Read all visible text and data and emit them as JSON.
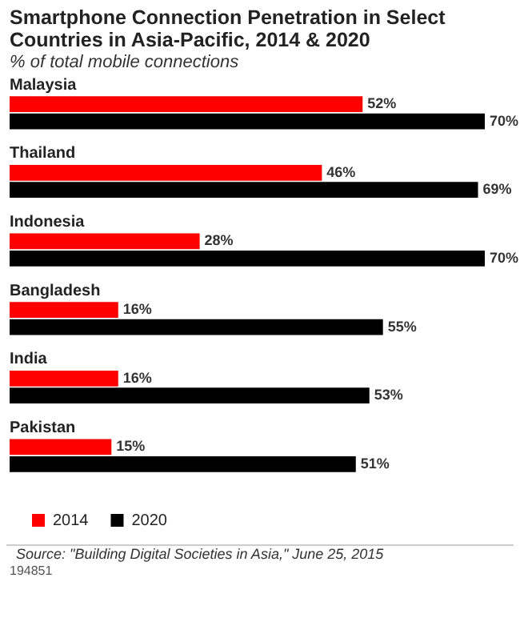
{
  "chart_data": {
    "type": "bar",
    "orientation": "horizontal",
    "title": "Smartphone Connection Penetration in Select Countries in Asia-Pacific, 2014 & 2020",
    "subtitle": "% of total mobile connections",
    "categories": [
      "Malaysia",
      "Thailand",
      "Indonesia",
      "Bangladesh",
      "India",
      "Pakistan"
    ],
    "series": [
      {
        "name": "2014",
        "color": "#ff0000",
        "values": [
          52,
          46,
          28,
          16,
          16,
          15
        ],
        "value_labels": [
          "52%",
          "46%",
          "28%",
          "16%",
          "16%",
          "15%"
        ]
      },
      {
        "name": "2020",
        "color": "#000000",
        "values": [
          70,
          69,
          70,
          55,
          53,
          51
        ],
        "value_labels": [
          "70%",
          "69%",
          "70%",
          "55%",
          "53%",
          "51%"
        ]
      }
    ],
    "legend": "bottom",
    "annotations": [
      "Source: \"Building Digital Societies in Asia,\" June 25, 2015",
      "194851"
    ]
  }
}
